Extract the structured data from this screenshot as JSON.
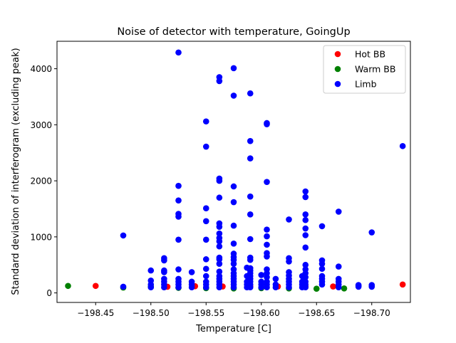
{
  "chart_data": {
    "type": "scatter",
    "title": "Noise of detector with temperature, GoingUp",
    "xlabel": "Temperature [C]",
    "ylabel": "Standard deviation of interferogram (excluding peak)",
    "xlim": [
      -198.415,
      -198.735
    ],
    "ylim": [
      -170,
      4490
    ],
    "x_inverted": true,
    "x_ticks": [
      -198.45,
      -198.5,
      -198.55,
      -198.6,
      -198.65,
      -198.7
    ],
    "x_tick_labels": [
      "−198.45",
      "−198.50",
      "−198.55",
      "−198.60",
      "−198.65",
      "−198.70"
    ],
    "y_ticks": [
      0,
      1000,
      2000,
      3000,
      4000
    ],
    "y_tick_labels": [
      "0",
      "1000",
      "2000",
      "3000",
      "4000"
    ],
    "grid": false,
    "legend_position": "top-right",
    "series": [
      {
        "name": "Hot BB",
        "color": "#ff0000",
        "points": [
          [
            -198.45,
            125
          ],
          [
            -198.515,
            110
          ],
          [
            -198.54,
            120
          ],
          [
            -198.565,
            115
          ],
          [
            -198.59,
            120
          ],
          [
            -198.615,
            115
          ],
          [
            -198.64,
            120
          ],
          [
            -198.665,
            115
          ],
          [
            -198.728,
            150
          ]
        ]
      },
      {
        "name": "Warm BB",
        "color": "#008000",
        "points": [
          [
            -198.425,
            125
          ],
          [
            -198.475,
            95
          ],
          [
            -198.5,
            110
          ],
          [
            -198.525,
            90
          ],
          [
            -198.55,
            85
          ],
          [
            -198.575,
            80
          ],
          [
            -198.6,
            85
          ],
          [
            -198.625,
            80
          ],
          [
            -198.65,
            75
          ],
          [
            -198.675,
            80
          ],
          [
            -198.688,
            125
          ]
        ]
      },
      {
        "name": "Limb",
        "color": "#0000ff",
        "points": [
          [
            -198.475,
            1025
          ],
          [
            -198.475,
            110
          ],
          [
            -198.5,
            400
          ],
          [
            -198.5,
            220
          ],
          [
            -198.5,
            150
          ],
          [
            -198.5,
            100
          ],
          [
            -198.512,
            620
          ],
          [
            -198.512,
            580
          ],
          [
            -198.512,
            400
          ],
          [
            -198.512,
            370
          ],
          [
            -198.512,
            250
          ],
          [
            -198.512,
            200
          ],
          [
            -198.512,
            150
          ],
          [
            -198.512,
            100
          ],
          [
            -198.525,
            4290
          ],
          [
            -198.525,
            1910
          ],
          [
            -198.525,
            1650
          ],
          [
            -198.525,
            1410
          ],
          [
            -198.525,
            1360
          ],
          [
            -198.525,
            950
          ],
          [
            -198.525,
            420
          ],
          [
            -198.525,
            250
          ],
          [
            -198.525,
            200
          ],
          [
            -198.525,
            150
          ],
          [
            -198.525,
            100
          ],
          [
            -198.537,
            370
          ],
          [
            -198.537,
            200
          ],
          [
            -198.537,
            150
          ],
          [
            -198.537,
            100
          ],
          [
            -198.55,
            3060
          ],
          [
            -198.55,
            2610
          ],
          [
            -198.55,
            1510
          ],
          [
            -198.55,
            1280
          ],
          [
            -198.55,
            950
          ],
          [
            -198.55,
            600
          ],
          [
            -198.55,
            430
          ],
          [
            -198.55,
            300
          ],
          [
            -198.55,
            200
          ],
          [
            -198.55,
            150
          ],
          [
            -198.55,
            100
          ],
          [
            -198.562,
            3850
          ],
          [
            -198.562,
            3780
          ],
          [
            -198.562,
            2040
          ],
          [
            -198.562,
            2000
          ],
          [
            -198.562,
            1700
          ],
          [
            -198.562,
            1240
          ],
          [
            -198.562,
            1180
          ],
          [
            -198.562,
            1060
          ],
          [
            -198.562,
            980
          ],
          [
            -198.562,
            920
          ],
          [
            -198.562,
            830
          ],
          [
            -198.562,
            630
          ],
          [
            -198.562,
            600
          ],
          [
            -198.562,
            520
          ],
          [
            -198.562,
            380
          ],
          [
            -198.562,
            300
          ],
          [
            -198.562,
            250
          ],
          [
            -198.562,
            200
          ],
          [
            -198.562,
            150
          ],
          [
            -198.562,
            100
          ],
          [
            -198.575,
            4010
          ],
          [
            -198.575,
            3520
          ],
          [
            -198.575,
            1900
          ],
          [
            -198.575,
            1620
          ],
          [
            -198.575,
            1200
          ],
          [
            -198.575,
            880
          ],
          [
            -198.575,
            700
          ],
          [
            -198.575,
            640
          ],
          [
            -198.575,
            590
          ],
          [
            -198.575,
            520
          ],
          [
            -198.575,
            420
          ],
          [
            -198.575,
            350
          ],
          [
            -198.575,
            300
          ],
          [
            -198.575,
            250
          ],
          [
            -198.575,
            200
          ],
          [
            -198.575,
            150
          ],
          [
            -198.575,
            100
          ],
          [
            -198.587,
            450
          ],
          [
            -198.587,
            300
          ],
          [
            -198.587,
            200
          ],
          [
            -198.587,
            150
          ],
          [
            -198.587,
            100
          ],
          [
            -198.59,
            3560
          ],
          [
            -198.59,
            2710
          ],
          [
            -198.59,
            2400
          ],
          [
            -198.59,
            1720
          ],
          [
            -198.59,
            1400
          ],
          [
            -198.59,
            960
          ],
          [
            -198.59,
            630
          ],
          [
            -198.59,
            590
          ],
          [
            -198.59,
            440
          ],
          [
            -198.59,
            400
          ],
          [
            -198.59,
            350
          ],
          [
            -198.59,
            300
          ],
          [
            -198.59,
            250
          ],
          [
            -198.59,
            200
          ],
          [
            -198.59,
            150
          ],
          [
            -198.59,
            100
          ],
          [
            -198.6,
            320
          ],
          [
            -198.6,
            200
          ],
          [
            -198.6,
            150
          ],
          [
            -198.6,
            100
          ],
          [
            -198.605,
            3030
          ],
          [
            -198.605,
            3010
          ],
          [
            -198.605,
            1980
          ],
          [
            -198.605,
            1130
          ],
          [
            -198.605,
            1010
          ],
          [
            -198.605,
            860
          ],
          [
            -198.605,
            710
          ],
          [
            -198.605,
            650
          ],
          [
            -198.605,
            420
          ],
          [
            -198.605,
            350
          ],
          [
            -198.605,
            280
          ],
          [
            -198.605,
            200
          ],
          [
            -198.605,
            150
          ],
          [
            -198.605,
            100
          ],
          [
            -198.613,
            250
          ],
          [
            -198.613,
            150
          ],
          [
            -198.613,
            100
          ],
          [
            -198.625,
            1310
          ],
          [
            -198.625,
            620
          ],
          [
            -198.625,
            560
          ],
          [
            -198.625,
            370
          ],
          [
            -198.625,
            310
          ],
          [
            -198.625,
            250
          ],
          [
            -198.625,
            200
          ],
          [
            -198.625,
            150
          ],
          [
            -198.625,
            100
          ],
          [
            -198.637,
            300
          ],
          [
            -198.637,
            200
          ],
          [
            -198.637,
            150
          ],
          [
            -198.637,
            100
          ],
          [
            -198.64,
            1810
          ],
          [
            -198.64,
            1710
          ],
          [
            -198.64,
            1400
          ],
          [
            -198.64,
            1300
          ],
          [
            -198.64,
            1150
          ],
          [
            -198.64,
            1030
          ],
          [
            -198.64,
            810
          ],
          [
            -198.64,
            500
          ],
          [
            -198.64,
            420
          ],
          [
            -198.64,
            350
          ],
          [
            -198.64,
            280
          ],
          [
            -198.64,
            200
          ],
          [
            -198.64,
            150
          ],
          [
            -198.64,
            100
          ],
          [
            -198.655,
            1190
          ],
          [
            -198.655,
            580
          ],
          [
            -198.655,
            520
          ],
          [
            -198.655,
            430
          ],
          [
            -198.655,
            300
          ],
          [
            -198.655,
            250
          ],
          [
            -198.655,
            200
          ],
          [
            -198.655,
            150
          ],
          [
            -198.67,
            1450
          ],
          [
            -198.67,
            470
          ],
          [
            -198.67,
            250
          ],
          [
            -198.67,
            200
          ],
          [
            -198.67,
            150
          ],
          [
            -198.67,
            100
          ],
          [
            -198.688,
            140
          ],
          [
            -198.688,
            110
          ],
          [
            -198.7,
            1080
          ],
          [
            -198.7,
            140
          ],
          [
            -198.7,
            110
          ],
          [
            -198.728,
            2620
          ]
        ]
      }
    ]
  }
}
